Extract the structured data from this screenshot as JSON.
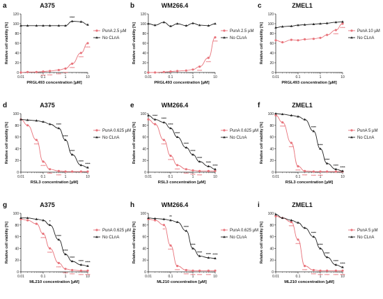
{
  "chart_data": [
    {
      "letter": "a",
      "title": "A375",
      "type": "line",
      "xlabel": "PRGL493 concentration [µM]",
      "ylabel": "Relative cell viability [%]",
      "xscale": "log",
      "xlim": [
        0.01,
        10
      ],
      "ylim": [
        0,
        120
      ],
      "xticks": [
        "0.01",
        "0.1",
        "1",
        "10"
      ],
      "yticks": [
        "0",
        "20",
        "40",
        "60",
        "80",
        "100",
        "120"
      ],
      "legend_position": "right",
      "series": [
        {
          "name": "PunA 2.5 µM",
          "color": "#e8737b",
          "x": [
            0.01,
            0.02,
            0.05,
            0.1,
            0.2,
            0.5,
            1,
            2,
            5,
            10
          ],
          "y": [
            0,
            1,
            1,
            2,
            3,
            5,
            8,
            18,
            40,
            60
          ],
          "stars": [
            "",
            "",
            "",
            "****",
            "****",
            "****",
            "****",
            "****",
            "****",
            "****"
          ]
        },
        {
          "name": "No CLnA",
          "color": "#222222",
          "x": [
            0.01,
            0.02,
            0.05,
            0.1,
            0.2,
            0.5,
            1,
            2,
            5,
            10
          ],
          "y": [
            96,
            96,
            96,
            96,
            96,
            96,
            96,
            105,
            104,
            98
          ],
          "stars": [
            "",
            "",
            "",
            "",
            "",
            "",
            "",
            "****",
            "",
            ""
          ]
        }
      ]
    },
    {
      "letter": "b",
      "title": "WM266.4",
      "type": "line",
      "xlabel": "PRGL493 concentration [µM]",
      "ylabel": "Relative cell viability [%]",
      "xscale": "log",
      "xlim": [
        0.01,
        10
      ],
      "ylim": [
        0,
        120
      ],
      "xticks": [
        "0.01",
        "0.1",
        "1",
        "10"
      ],
      "yticks": [
        "0",
        "20",
        "40",
        "60",
        "80",
        "100",
        "120"
      ],
      "legend_position": "right",
      "series": [
        {
          "name": "PunA 2.5 µM",
          "color": "#e8737b",
          "x": [
            0.01,
            0.02,
            0.05,
            0.1,
            0.2,
            0.5,
            1,
            2,
            5,
            10
          ],
          "y": [
            0,
            0,
            1,
            2,
            3,
            4,
            6,
            12,
            30,
            72
          ],
          "stars": [
            "",
            "",
            "",
            "",
            "",
            "",
            "",
            "****",
            "****",
            "****"
          ]
        },
        {
          "name": "No CLnA",
          "color": "#222222",
          "x": [
            0.01,
            0.02,
            0.05,
            0.1,
            0.2,
            0.5,
            1,
            2,
            5,
            10
          ],
          "y": [
            100,
            97,
            103,
            95,
            100,
            96,
            101,
            97,
            96,
            100
          ],
          "stars": [
            "",
            "",
            "",
            "",
            "",
            "",
            "",
            "",
            "",
            ""
          ]
        }
      ]
    },
    {
      "letter": "c",
      "title": "ZMEL1",
      "type": "line",
      "xlabel": "PRGL493 concentration [µM]",
      "ylabel": "Relative cell viability [%]",
      "xscale": "log",
      "xlim": [
        0.01,
        10
      ],
      "ylim": [
        0,
        120
      ],
      "xticks": [
        "0.01",
        "0.1",
        "1",
        "10"
      ],
      "yticks": [
        "0",
        "20",
        "40",
        "60",
        "80",
        "100",
        "120"
      ],
      "legend_position": "right",
      "series": [
        {
          "name": "PunA 10 µM",
          "color": "#e8737b",
          "x": [
            0.01,
            0.02,
            0.05,
            0.1,
            0.2,
            0.5,
            1,
            2,
            5,
            10
          ],
          "y": [
            66,
            62,
            67,
            66,
            68,
            69,
            71,
            77,
            87,
            100
          ],
          "stars": [
            "",
            "",
            "",
            "",
            "",
            "",
            "",
            "",
            "****",
            "****"
          ]
        },
        {
          "name": "No CLnA",
          "color": "#222222",
          "x": [
            0.01,
            0.02,
            0.05,
            0.1,
            0.2,
            0.5,
            1,
            2,
            5,
            10
          ],
          "y": [
            92,
            94,
            95,
            97,
            98,
            99,
            100,
            101,
            103,
            104
          ],
          "stars": [
            "",
            "",
            "",
            "",
            "",
            "",
            "",
            "",
            "",
            ""
          ]
        }
      ]
    },
    {
      "letter": "d",
      "title": "A375",
      "type": "line",
      "xlabel": "RSL3 concentration [µM]",
      "ylabel": "Relative cell viability [%]",
      "xscale": "log",
      "xlim": [
        0.01,
        10
      ],
      "ylim": [
        0,
        100
      ],
      "xticks": [
        "0.01",
        "0.1",
        "1",
        "10"
      ],
      "yticks": [
        "0",
        "20",
        "40",
        "60",
        "80",
        "100"
      ],
      "legend_position": "right",
      "series": [
        {
          "name": "PunA 0.625 µM",
          "color": "#e8737b",
          "x": [
            0.01,
            0.02,
            0.05,
            0.1,
            0.2,
            0.5,
            1,
            2,
            5,
            10
          ],
          "y": [
            90,
            80,
            55,
            18,
            5,
            2,
            1,
            1,
            1,
            1
          ],
          "stars": [
            "",
            "",
            "****",
            "****",
            "****",
            "****",
            "",
            "",
            "",
            ""
          ]
        },
        {
          "name": "No CLnA",
          "color": "#222222",
          "x": [
            0.01,
            0.02,
            0.05,
            0.1,
            0.2,
            0.5,
            1,
            2,
            5,
            10
          ],
          "y": [
            90,
            89,
            88,
            86,
            82,
            75,
            55,
            30,
            12,
            8
          ],
          "stars": [
            "",
            "",
            "",
            "",
            "",
            "****",
            "****",
            "****",
            "****",
            "****"
          ]
        }
      ]
    },
    {
      "letter": "e",
      "title": "WM266.4",
      "type": "line",
      "xlabel": "RSL3 concentration [µM]",
      "ylabel": "Relative cell viability [%]",
      "xscale": "log",
      "xlim": [
        0.01,
        10
      ],
      "ylim": [
        0,
        100
      ],
      "xticks": [
        "0.01",
        "0.1",
        "1",
        "10"
      ],
      "yticks": [
        "0",
        "20",
        "40",
        "60",
        "80",
        "100"
      ],
      "legend_position": "right",
      "series": [
        {
          "name": "PunA 0.625 µM",
          "color": "#e8737b",
          "x": [
            0.01,
            0.02,
            0.05,
            0.1,
            0.2,
            0.5,
            1,
            2,
            5,
            10
          ],
          "y": [
            90,
            82,
            55,
            28,
            12,
            5,
            3,
            2,
            2,
            2
          ],
          "stars": [
            "",
            "",
            "****",
            "****",
            "****",
            "****",
            "****",
            "****",
            "",
            ""
          ]
        },
        {
          "name": "No CLnA",
          "color": "#222222",
          "x": [
            0.01,
            0.02,
            0.05,
            0.1,
            0.2,
            0.5,
            1,
            2,
            5,
            10
          ],
          "y": [
            97,
            90,
            85,
            75,
            60,
            42,
            30,
            18,
            10,
            5
          ],
          "stars": [
            "",
            "****",
            "****",
            "****",
            "****",
            "****",
            "****",
            "****",
            "****",
            "****"
          ]
        }
      ]
    },
    {
      "letter": "f",
      "title": "ZMEL1",
      "type": "line",
      "xlabel": "RSL3 concentration [µM]",
      "ylabel": "Relative cell viability [%]",
      "xscale": "log",
      "xlim": [
        0.01,
        10
      ],
      "ylim": [
        0,
        100
      ],
      "xticks": [
        "0.01",
        "0.1",
        "1",
        "10"
      ],
      "yticks": [
        "0",
        "20",
        "40",
        "60",
        "80",
        "100"
      ],
      "legend_position": "right",
      "series": [
        {
          "name": "PunA 5 µM",
          "color": "#e8737b",
          "x": [
            0.01,
            0.02,
            0.05,
            0.1,
            0.2,
            0.5,
            1,
            2,
            5,
            10
          ],
          "y": [
            97,
            85,
            50,
            10,
            2,
            1,
            1,
            1,
            1,
            1
          ],
          "stars": [
            "",
            "****",
            "****",
            "****",
            "****",
            "****",
            "****",
            "",
            "",
            ""
          ]
        },
        {
          "name": "No CLnA",
          "color": "#222222",
          "x": [
            0.01,
            0.02,
            0.05,
            0.1,
            0.2,
            0.5,
            1,
            2,
            5,
            10
          ],
          "y": [
            100,
            99,
            97,
            95,
            90,
            70,
            40,
            15,
            5,
            2
          ],
          "stars": [
            "",
            "",
            "",
            "",
            "",
            "****",
            "****",
            "****",
            "****",
            "****"
          ]
        }
      ]
    },
    {
      "letter": "g",
      "title": "A375",
      "type": "line",
      "xlabel": "ML210 concentration [µM]",
      "ylabel": "Relative cell viability [%]",
      "xscale": "log",
      "xlim": [
        0.01,
        10
      ],
      "ylim": [
        0,
        100
      ],
      "xticks": [
        "0.01",
        "0.1",
        "1",
        "10"
      ],
      "yticks": [
        "0",
        "20",
        "40",
        "60",
        "80",
        "100"
      ],
      "legend_position": "right",
      "series": [
        {
          "name": "PunA 0.625 µM",
          "color": "#e8737b",
          "x": [
            0.01,
            0.02,
            0.05,
            0.1,
            0.2,
            0.5,
            1,
            2,
            5,
            10
          ],
          "y": [
            90,
            88,
            82,
            65,
            40,
            15,
            5,
            3,
            2,
            2
          ],
          "stars": [
            "",
            "",
            "",
            "****",
            "****",
            "****",
            "****",
            "****",
            "****",
            "****"
          ]
        },
        {
          "name": "No CLnA",
          "color": "#222222",
          "x": [
            0.01,
            0.02,
            0.05,
            0.1,
            0.2,
            0.5,
            1,
            2,
            5,
            10
          ],
          "y": [
            92,
            92,
            90,
            88,
            80,
            55,
            30,
            18,
            12,
            10
          ],
          "stars": [
            "",
            "",
            "",
            "",
            "*",
            "****",
            "****",
            "****",
            "****",
            "****"
          ]
        }
      ]
    },
    {
      "letter": "h",
      "title": "WM266.4",
      "type": "line",
      "xlabel": "ML210 concentration [µM]",
      "ylabel": "Relative cell viability [%]",
      "xscale": "log",
      "xlim": [
        0.01,
        10
      ],
      "ylim": [
        0,
        100
      ],
      "xticks": [
        "0.01",
        "0.1",
        "1",
        "10"
      ],
      "yticks": [
        "0",
        "20",
        "40",
        "60",
        "80",
        "100"
      ],
      "legend_position": "right",
      "series": [
        {
          "name": "PunA 0.625 µM",
          "color": "#e8737b",
          "x": [
            0.01,
            0.02,
            0.05,
            0.1,
            0.2,
            0.5,
            1,
            2,
            5,
            10
          ],
          "y": [
            90,
            88,
            80,
            45,
            10,
            3,
            2,
            2,
            2,
            2
          ],
          "stars": [
            "",
            "",
            "**",
            "****",
            "****",
            "****",
            "****",
            "****",
            "****",
            ""
          ]
        },
        {
          "name": "No CLnA",
          "color": "#222222",
          "x": [
            0.01,
            0.02,
            0.05,
            0.1,
            0.2,
            0.5,
            1,
            2,
            5,
            10
          ],
          "y": [
            92,
            91,
            90,
            88,
            85,
            70,
            40,
            27,
            24,
            23
          ],
          "stars": [
            "",
            "",
            "",
            "**",
            "",
            "****",
            "****",
            "****",
            "****",
            "****"
          ]
        }
      ]
    },
    {
      "letter": "i",
      "title": "ZMEL1",
      "type": "line",
      "xlabel": "ML210 concentration [µM]",
      "ylabel": "Relative cell viability [%]",
      "xscale": "log",
      "xlim": [
        0.01,
        10
      ],
      "ylim": [
        0,
        100
      ],
      "xticks": [
        "0.01",
        "0.1",
        "1",
        "10"
      ],
      "yticks": [
        "0",
        "20",
        "40",
        "60",
        "80",
        "100"
      ],
      "legend_position": "right",
      "series": [
        {
          "name": "PunA 5 µM",
          "color": "#e8737b",
          "x": [
            0.01,
            0.02,
            0.05,
            0.1,
            0.2,
            0.5,
            1,
            2,
            5,
            10
          ],
          "y": [
            95,
            92,
            85,
            55,
            10,
            3,
            2,
            2,
            2,
            2
          ],
          "stars": [
            "",
            "",
            "****",
            "****",
            "****",
            "****",
            "****",
            "****",
            "****",
            "****"
          ]
        },
        {
          "name": "No CLnA",
          "color": "#222222",
          "x": [
            0.01,
            0.02,
            0.05,
            0.1,
            0.2,
            0.5,
            1,
            2,
            5,
            10
          ],
          "y": [
            98,
            92,
            88,
            84,
            75,
            60,
            40,
            25,
            12,
            8
          ],
          "stars": [
            "",
            "",
            "",
            "",
            "",
            "****",
            "****",
            "****",
            "****",
            "****"
          ]
        }
      ]
    }
  ]
}
